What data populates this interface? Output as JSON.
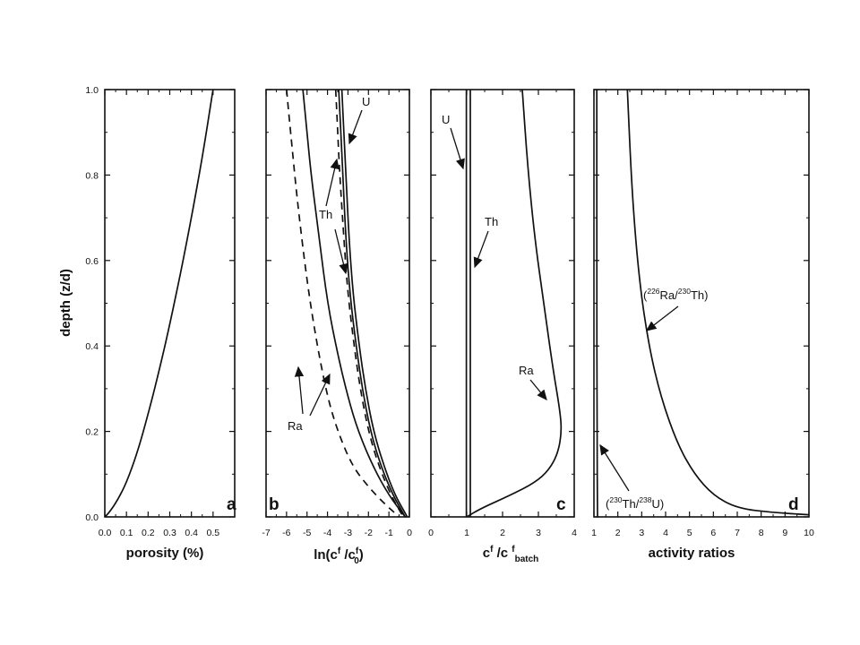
{
  "chart_data": [
    {
      "type": "line",
      "panel_label": "a",
      "xlabel": "porosity (%)",
      "ylabel": "depth (z/d)",
      "xlim": [
        0,
        0.6
      ],
      "ylim": [
        0,
        1.0
      ],
      "xticks": [
        "0.0",
        "0.1",
        "0.2",
        "0.3",
        "0.4",
        "0.5"
      ],
      "yticks": [
        "0.0",
        "0.2",
        "0.4",
        "0.6",
        "0.8",
        "1.0"
      ],
      "series": [
        {
          "style": "solid",
          "x": [
            0.0,
            0.02,
            0.06,
            0.1,
            0.15,
            0.2,
            0.25,
            0.3,
            0.35,
            0.4,
            0.45,
            0.5
          ],
          "y": [
            0.0,
            0.01,
            0.04,
            0.08,
            0.15,
            0.24,
            0.34,
            0.45,
            0.57,
            0.7,
            0.84,
            1.0
          ]
        }
      ]
    },
    {
      "type": "line",
      "panel_label": "b",
      "xlabel": "ln(c",
      "xlabel_parts": [
        "ln(c",
        "f",
        " /c",
        "f",
        "0",
        ")"
      ],
      "xlim": [
        -7,
        0
      ],
      "ylim": [
        0,
        1.0
      ],
      "xticks": [
        "-7",
        "-6",
        "-5",
        "-4",
        "-3",
        "-2",
        "-1",
        "0"
      ],
      "annotations": [
        "U",
        "Th",
        "Ra"
      ],
      "series": [
        {
          "style": "dashed",
          "x": [
            -6.0,
            -5.8,
            -5.5,
            -5.0,
            -4.5,
            -4.0,
            -3.5,
            -2.8,
            -2.0,
            -1.2,
            -0.5
          ],
          "y": [
            1.0,
            0.9,
            0.75,
            0.55,
            0.4,
            0.28,
            0.2,
            0.12,
            0.07,
            0.03,
            0.0
          ]
        },
        {
          "style": "solid",
          "x": [
            -5.2,
            -5.0,
            -4.8,
            -4.4,
            -4.0,
            -3.5,
            -3.0,
            -2.5,
            -1.8,
            -1.0,
            -0.2
          ],
          "y": [
            1.0,
            0.9,
            0.8,
            0.65,
            0.5,
            0.38,
            0.28,
            0.2,
            0.12,
            0.05,
            0.0
          ]
        },
        {
          "style": "dashed",
          "x": [
            -3.6,
            -3.5,
            -3.4,
            -3.2,
            -3.0,
            -2.7,
            -2.4,
            -2.0,
            -1.5,
            -0.9,
            -0.3
          ],
          "y": [
            1.0,
            0.9,
            0.8,
            0.65,
            0.52,
            0.4,
            0.3,
            0.2,
            0.12,
            0.05,
            0.0
          ]
        },
        {
          "style": "solid",
          "x": [
            -3.45,
            -3.35,
            -3.25,
            -3.1,
            -2.9,
            -2.6,
            -2.3,
            -1.9,
            -1.4,
            -0.8,
            -0.2
          ],
          "y": [
            1.0,
            0.9,
            0.8,
            0.65,
            0.52,
            0.4,
            0.3,
            0.2,
            0.12,
            0.05,
            0.0
          ]
        },
        {
          "style": "solid",
          "x": [
            -3.3,
            -3.2,
            -3.1,
            -2.95,
            -2.75,
            -2.45,
            -2.15,
            -1.75,
            -1.25,
            -0.7,
            -0.1
          ],
          "y": [
            1.0,
            0.9,
            0.8,
            0.65,
            0.52,
            0.4,
            0.3,
            0.2,
            0.12,
            0.05,
            0.0
          ]
        }
      ]
    },
    {
      "type": "line",
      "panel_label": "c",
      "xlabel_parts": [
        "c",
        "f",
        " /c ",
        "f",
        "batch"
      ],
      "xlim": [
        0,
        4
      ],
      "ylim": [
        0,
        1.0
      ],
      "xticks": [
        "0",
        "1",
        "2",
        "3",
        "4"
      ],
      "annotations": [
        "U",
        "Th",
        "Ra"
      ],
      "series": [
        {
          "style": "solid",
          "x": [
            0.99,
            0.99
          ],
          "y": [
            0.0,
            1.0
          ]
        },
        {
          "style": "solid",
          "x": [
            1.1,
            1.1
          ],
          "y": [
            0.0,
            1.0
          ]
        },
        {
          "style": "solid",
          "x": [
            1.0,
            1.4,
            2.2,
            2.9,
            3.3,
            3.55,
            3.65,
            3.6,
            3.4,
            3.15,
            2.9,
            2.7,
            2.55
          ],
          "y": [
            0.0,
            0.02,
            0.05,
            0.08,
            0.11,
            0.15,
            0.2,
            0.25,
            0.35,
            0.5,
            0.65,
            0.82,
            1.0
          ]
        }
      ]
    },
    {
      "type": "line",
      "panel_label": "d",
      "xlabel": "activity ratios",
      "xlim": [
        1,
        10
      ],
      "ylim": [
        0,
        1.0
      ],
      "xticks": [
        "1",
        "2",
        "3",
        "4",
        "5",
        "6",
        "7",
        "8",
        "9",
        "10"
      ],
      "annotations": [
        "(226Ra/230Th)",
        "(230Th/238U)"
      ],
      "series": [
        {
          "name": "(226Ra/230Th)",
          "style": "solid",
          "x": [
            2.4,
            2.6,
            2.9,
            3.3,
            3.8,
            4.5,
            5.2,
            6.0,
            7.0,
            8.5,
            10.0
          ],
          "y": [
            1.0,
            0.75,
            0.55,
            0.4,
            0.28,
            0.17,
            0.1,
            0.05,
            0.02,
            0.01,
            0.005
          ]
        },
        {
          "name": "(230Th/238U)",
          "style": "solid",
          "x": [
            1.12,
            1.12,
            1.13,
            1.15
          ],
          "y": [
            1.0,
            0.6,
            0.2,
            0.0
          ]
        }
      ]
    }
  ]
}
